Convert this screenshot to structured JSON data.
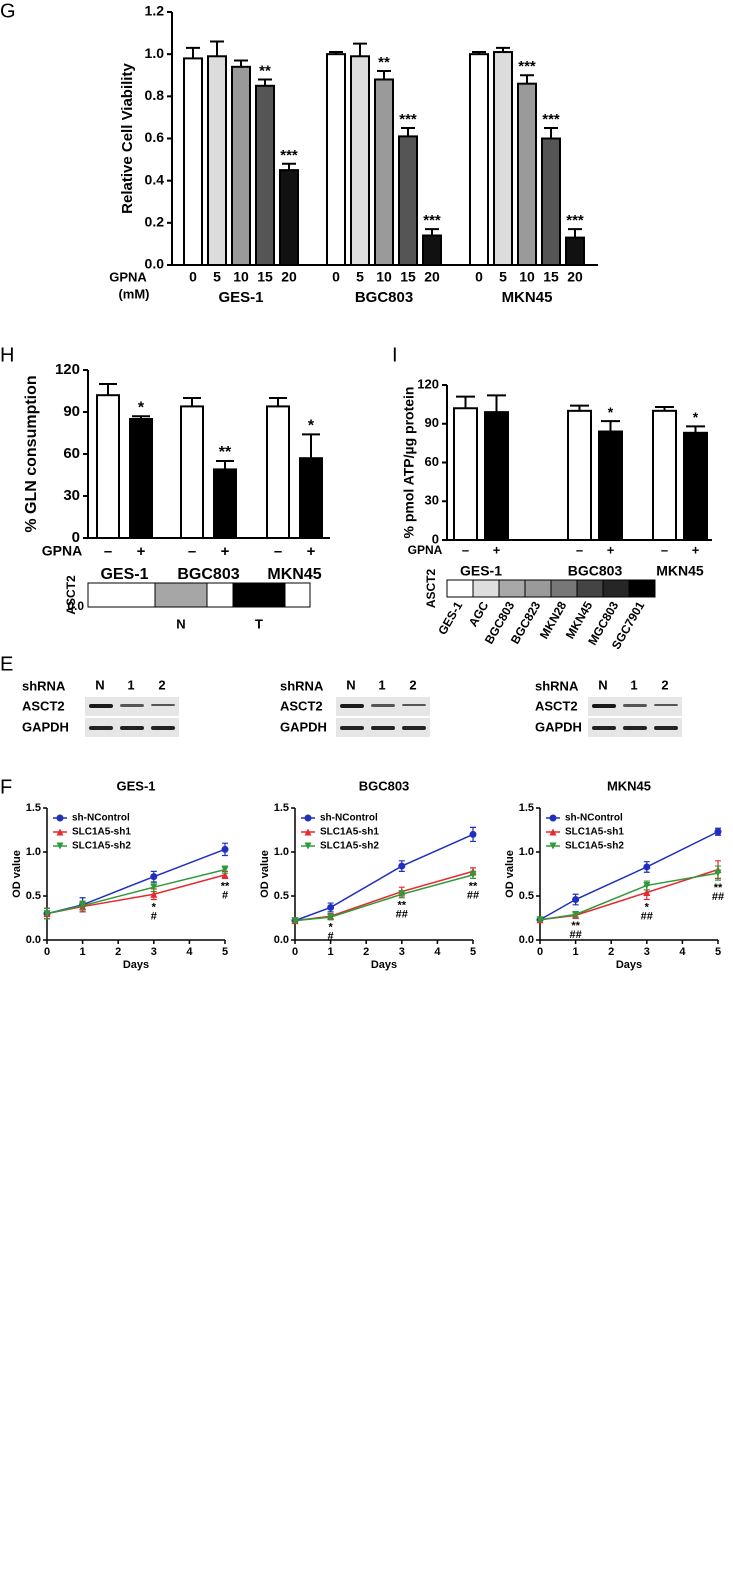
{
  "chart_data": [
    {
      "type": "bar",
      "panel": "G",
      "ylabel": "Relative Cell Viability",
      "xlabel": "GPNA",
      "xlabel_unit": "(mM)",
      "categories": [
        "GES-1",
        "BGC803",
        "MKN45"
      ],
      "ylim": [
        0,
        1.2
      ],
      "yticks": [
        {
          "value": 0,
          "label": "0.0"
        },
        {
          "value": 0.2,
          "label": "0.2"
        },
        {
          "value": 0.4,
          "label": "0.4"
        },
        {
          "value": 0.6,
          "label": "0.6"
        },
        {
          "value": 0.8,
          "label": "0.8"
        },
        {
          "value": 1.0,
          "label": "1.0"
        },
        {
          "value": 1.2,
          "label": "1.2"
        }
      ],
      "series": [
        {
          "name": "0",
          "color": "#ffffff",
          "values": [
            0.98,
            1.0,
            1.0
          ],
          "errors": [
            0.05,
            0.01,
            0.01
          ],
          "significance": [
            null,
            null,
            null
          ]
        },
        {
          "name": "5",
          "color": "#dcdcdc",
          "values": [
            0.99,
            0.99,
            1.01
          ],
          "errors": [
            0.07,
            0.06,
            0.02
          ],
          "significance": [
            null,
            null,
            null
          ]
        },
        {
          "name": "10",
          "color": "#9a9a9a",
          "values": [
            0.94,
            0.88,
            0.86
          ],
          "errors": [
            0.03,
            0.04,
            0.04
          ],
          "significance": [
            null,
            "**",
            "***"
          ]
        },
        {
          "name": "15",
          "color": "#555555",
          "values": [
            0.85,
            0.61,
            0.6
          ],
          "errors": [
            0.03,
            0.04,
            0.05
          ],
          "significance": [
            "**",
            "***",
            "***"
          ]
        },
        {
          "name": "20",
          "color": "#111111",
          "values": [
            0.45,
            0.14,
            0.13
          ],
          "errors": [
            0.03,
            0.03,
            0.04
          ],
          "significance": [
            "***",
            "***",
            "***"
          ]
        }
      ]
    },
    {
      "type": "bar",
      "panel": "H",
      "ylabel": "% GLN consumption",
      "xlabel": "GPNA",
      "categories": [
        "GES-1",
        "BGC803",
        "MKN45"
      ],
      "ylim": [
        0,
        120
      ],
      "yticks": [
        0,
        30,
        60,
        90,
        120
      ],
      "series": [
        {
          "name": "–",
          "color": "#ffffff",
          "values": [
            102,
            94,
            94
          ],
          "errors": [
            8,
            6,
            6
          ],
          "significance": [
            null,
            null,
            null
          ]
        },
        {
          "name": "+",
          "color": "#000000",
          "values": [
            85,
            49,
            57
          ],
          "errors": [
            2,
            6,
            17
          ],
          "significance": [
            "*",
            "**",
            "*"
          ]
        }
      ],
      "strip": {
        "label": "ASCT2",
        "ticks": [
          {
            "value": 0,
            "label": "0.0"
          }
        ],
        "categories": [
          null,
          "N",
          null,
          "T",
          null
        ],
        "colors": [
          "#ffffff",
          "#a6a6a6",
          "#ffffff",
          "#000000",
          "#ffffff"
        ]
      }
    },
    {
      "type": "bar",
      "panel": "I",
      "ylabel": "% pmol ATP/µg protein",
      "xlabel": "GPNA",
      "categories": [
        "GES-1",
        "BGC803",
        "MKN45"
      ],
      "ylim": [
        0,
        120
      ],
      "yticks": [
        0,
        30,
        60,
        90,
        120
      ],
      "series": [
        {
          "name": "–",
          "color": "#ffffff",
          "values": [
            102,
            100,
            100
          ],
          "errors": [
            9,
            4,
            3
          ],
          "significance": [
            null,
            null,
            null
          ]
        },
        {
          "name": "+",
          "color": "#000000",
          "values": [
            99,
            84,
            83
          ],
          "errors": [
            13,
            8,
            5
          ],
          "significance": [
            null,
            "*",
            "*"
          ]
        }
      ],
      "strip": {
        "label": "ASCT2",
        "categories": [
          "GES-1",
          "AGC",
          "BGC803",
          "BGC823",
          "MKN28",
          "MKN45",
          "MGC803",
          "SGC7901"
        ],
        "colors": [
          "#ffffff",
          "#dedede",
          "#a8a8a8",
          "#9a9a9a",
          "#777777",
          "#444444",
          "#262626",
          "#000000"
        ]
      }
    },
    {
      "type": "line",
      "panel": "F",
      "title": "GES-1",
      "ylabel": "OD value",
      "xlabel": "Days",
      "x": [
        0,
        1,
        3,
        5
      ],
      "xlim": [
        0,
        5
      ],
      "xticks": [
        0,
        1,
        2,
        3,
        4,
        5
      ],
      "ylim": [
        0,
        1.5
      ],
      "yticks": [
        {
          "value": 0,
          "label": "0.0"
        },
        {
          "value": 0.5,
          "label": "0.5"
        },
        {
          "value": 1.0,
          "label": "1.0"
        },
        {
          "value": 1.5,
          "label": "1.5"
        }
      ],
      "series": [
        {
          "name": "sh-NControl",
          "color": "#1f2fbf",
          "marker": "circle",
          "values": [
            0.3,
            0.4,
            0.72,
            1.03
          ],
          "errors": [
            0.06,
            0.08,
            0.06,
            0.07
          ]
        },
        {
          "name": "SLC1A5-sh1",
          "color": "#e8282e",
          "marker": "triangle-up",
          "values": [
            0.3,
            0.38,
            0.52,
            0.74
          ],
          "errors": [
            0.06,
            0.06,
            0.06,
            0.04
          ]
        },
        {
          "name": "SLC1A5-sh2",
          "color": "#2f9a3a",
          "marker": "triangle-down",
          "values": [
            0.3,
            0.39,
            0.6,
            0.8
          ],
          "errors": [
            0.06,
            0.05,
            0.05,
            0.04
          ]
        }
      ],
      "annotations": [
        {
          "x": 3,
          "labels": [
            "*",
            "#"
          ]
        },
        {
          "x": 5,
          "labels": [
            "**",
            "#"
          ]
        }
      ]
    },
    {
      "type": "line",
      "title": "BGC803",
      "ylabel": "OD value",
      "xlabel": "Days",
      "x": [
        0,
        1,
        3,
        5
      ],
      "xlim": [
        0,
        5
      ],
      "xticks": [
        0,
        1,
        2,
        3,
        4,
        5
      ],
      "ylim": [
        0,
        1.5
      ],
      "yticks": [
        {
          "value": 0,
          "label": "0.0"
        },
        {
          "value": 0.5,
          "label": "0.5"
        },
        {
          "value": 1.0,
          "label": "1.0"
        },
        {
          "value": 1.5,
          "label": "1.5"
        }
      ],
      "series": [
        {
          "name": "sh-NControl",
          "color": "#1f2fbf",
          "marker": "circle",
          "values": [
            0.22,
            0.37,
            0.84,
            1.2
          ],
          "errors": [
            0.02,
            0.05,
            0.06,
            0.08
          ]
        },
        {
          "name": "SLC1A5-sh1",
          "color": "#e8282e",
          "marker": "triangle-up",
          "values": [
            0.22,
            0.27,
            0.55,
            0.78
          ],
          "errors": [
            0.02,
            0.03,
            0.05,
            0.04
          ]
        },
        {
          "name": "SLC1A5-sh2",
          "color": "#2f9a3a",
          "marker": "triangle-down",
          "values": [
            0.22,
            0.26,
            0.52,
            0.74
          ],
          "errors": [
            0.02,
            0.03,
            0.04,
            0.04
          ]
        }
      ],
      "annotations": [
        {
          "x": 1,
          "labels": [
            "*",
            "#"
          ]
        },
        {
          "x": 3,
          "labels": [
            "**",
            "##"
          ]
        },
        {
          "x": 5,
          "labels": [
            "**",
            "##"
          ]
        }
      ]
    },
    {
      "type": "line",
      "title": "MKN45",
      "ylabel": "OD value",
      "xlabel": "Days",
      "x": [
        0,
        1,
        3,
        5
      ],
      "xlim": [
        0,
        5
      ],
      "xticks": [
        0,
        1,
        2,
        3,
        4,
        5
      ],
      "ylim": [
        0,
        1.5
      ],
      "yticks": [
        {
          "value": 0,
          "label": "0.0"
        },
        {
          "value": 0.5,
          "label": "0.5"
        },
        {
          "value": 1.0,
          "label": "1.0"
        },
        {
          "value": 1.5,
          "label": "1.5"
        }
      ],
      "series": [
        {
          "name": "sh-NControl",
          "color": "#1f2fbf",
          "marker": "circle",
          "values": [
            0.23,
            0.46,
            0.83,
            1.23
          ],
          "errors": [
            0.02,
            0.06,
            0.06,
            0.04
          ]
        },
        {
          "name": "SLC1A5-sh1",
          "color": "#e8282e",
          "marker": "triangle-up",
          "values": [
            0.23,
            0.28,
            0.54,
            0.8
          ],
          "errors": [
            0.02,
            0.03,
            0.08,
            0.1
          ]
        },
        {
          "name": "SLC1A5-sh2",
          "color": "#2f9a3a",
          "marker": "triangle-down",
          "values": [
            0.23,
            0.29,
            0.62,
            0.76
          ],
          "errors": [
            0.02,
            0.03,
            0.05,
            0.08
          ]
        }
      ],
      "annotations": [
        {
          "x": 1,
          "labels": [
            "**",
            "##"
          ]
        },
        {
          "x": 3,
          "labels": [
            "*",
            "##"
          ]
        },
        {
          "x": 5,
          "labels": [
            "**",
            "##"
          ]
        }
      ]
    }
  ],
  "blots": {
    "panel": "E",
    "header": "shRNA",
    "columns": [
      "N",
      "1",
      "2"
    ],
    "rows": [
      "ASCT2",
      "GAPDH"
    ]
  }
}
